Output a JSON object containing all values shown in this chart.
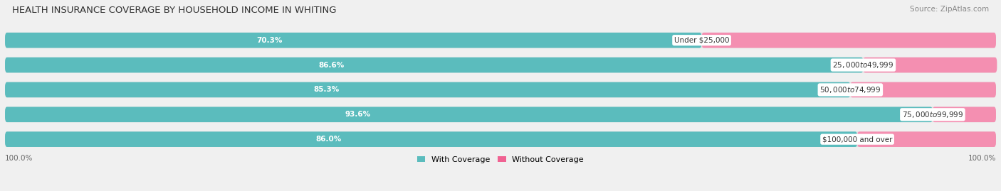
{
  "title": "HEALTH INSURANCE COVERAGE BY HOUSEHOLD INCOME IN WHITING",
  "source": "Source: ZipAtlas.com",
  "categories": [
    "Under $25,000",
    "$25,000 to $49,999",
    "$50,000 to $74,999",
    "$75,000 to $99,999",
    "$100,000 and over"
  ],
  "with_coverage": [
    70.3,
    86.6,
    85.3,
    93.6,
    86.0
  ],
  "without_coverage": [
    29.7,
    13.5,
    14.7,
    6.4,
    14.0
  ],
  "color_with": "#5bbcbd",
  "color_without": "#f48fb1",
  "color_without_bright": "#f06292",
  "bg_color": "#f0f0f0",
  "bar_bg_color": "#e0dfe0",
  "title_fontsize": 9.5,
  "source_fontsize": 7.5,
  "label_fontsize": 7.5,
  "cat_fontsize": 7.5,
  "legend_fontsize": 8
}
